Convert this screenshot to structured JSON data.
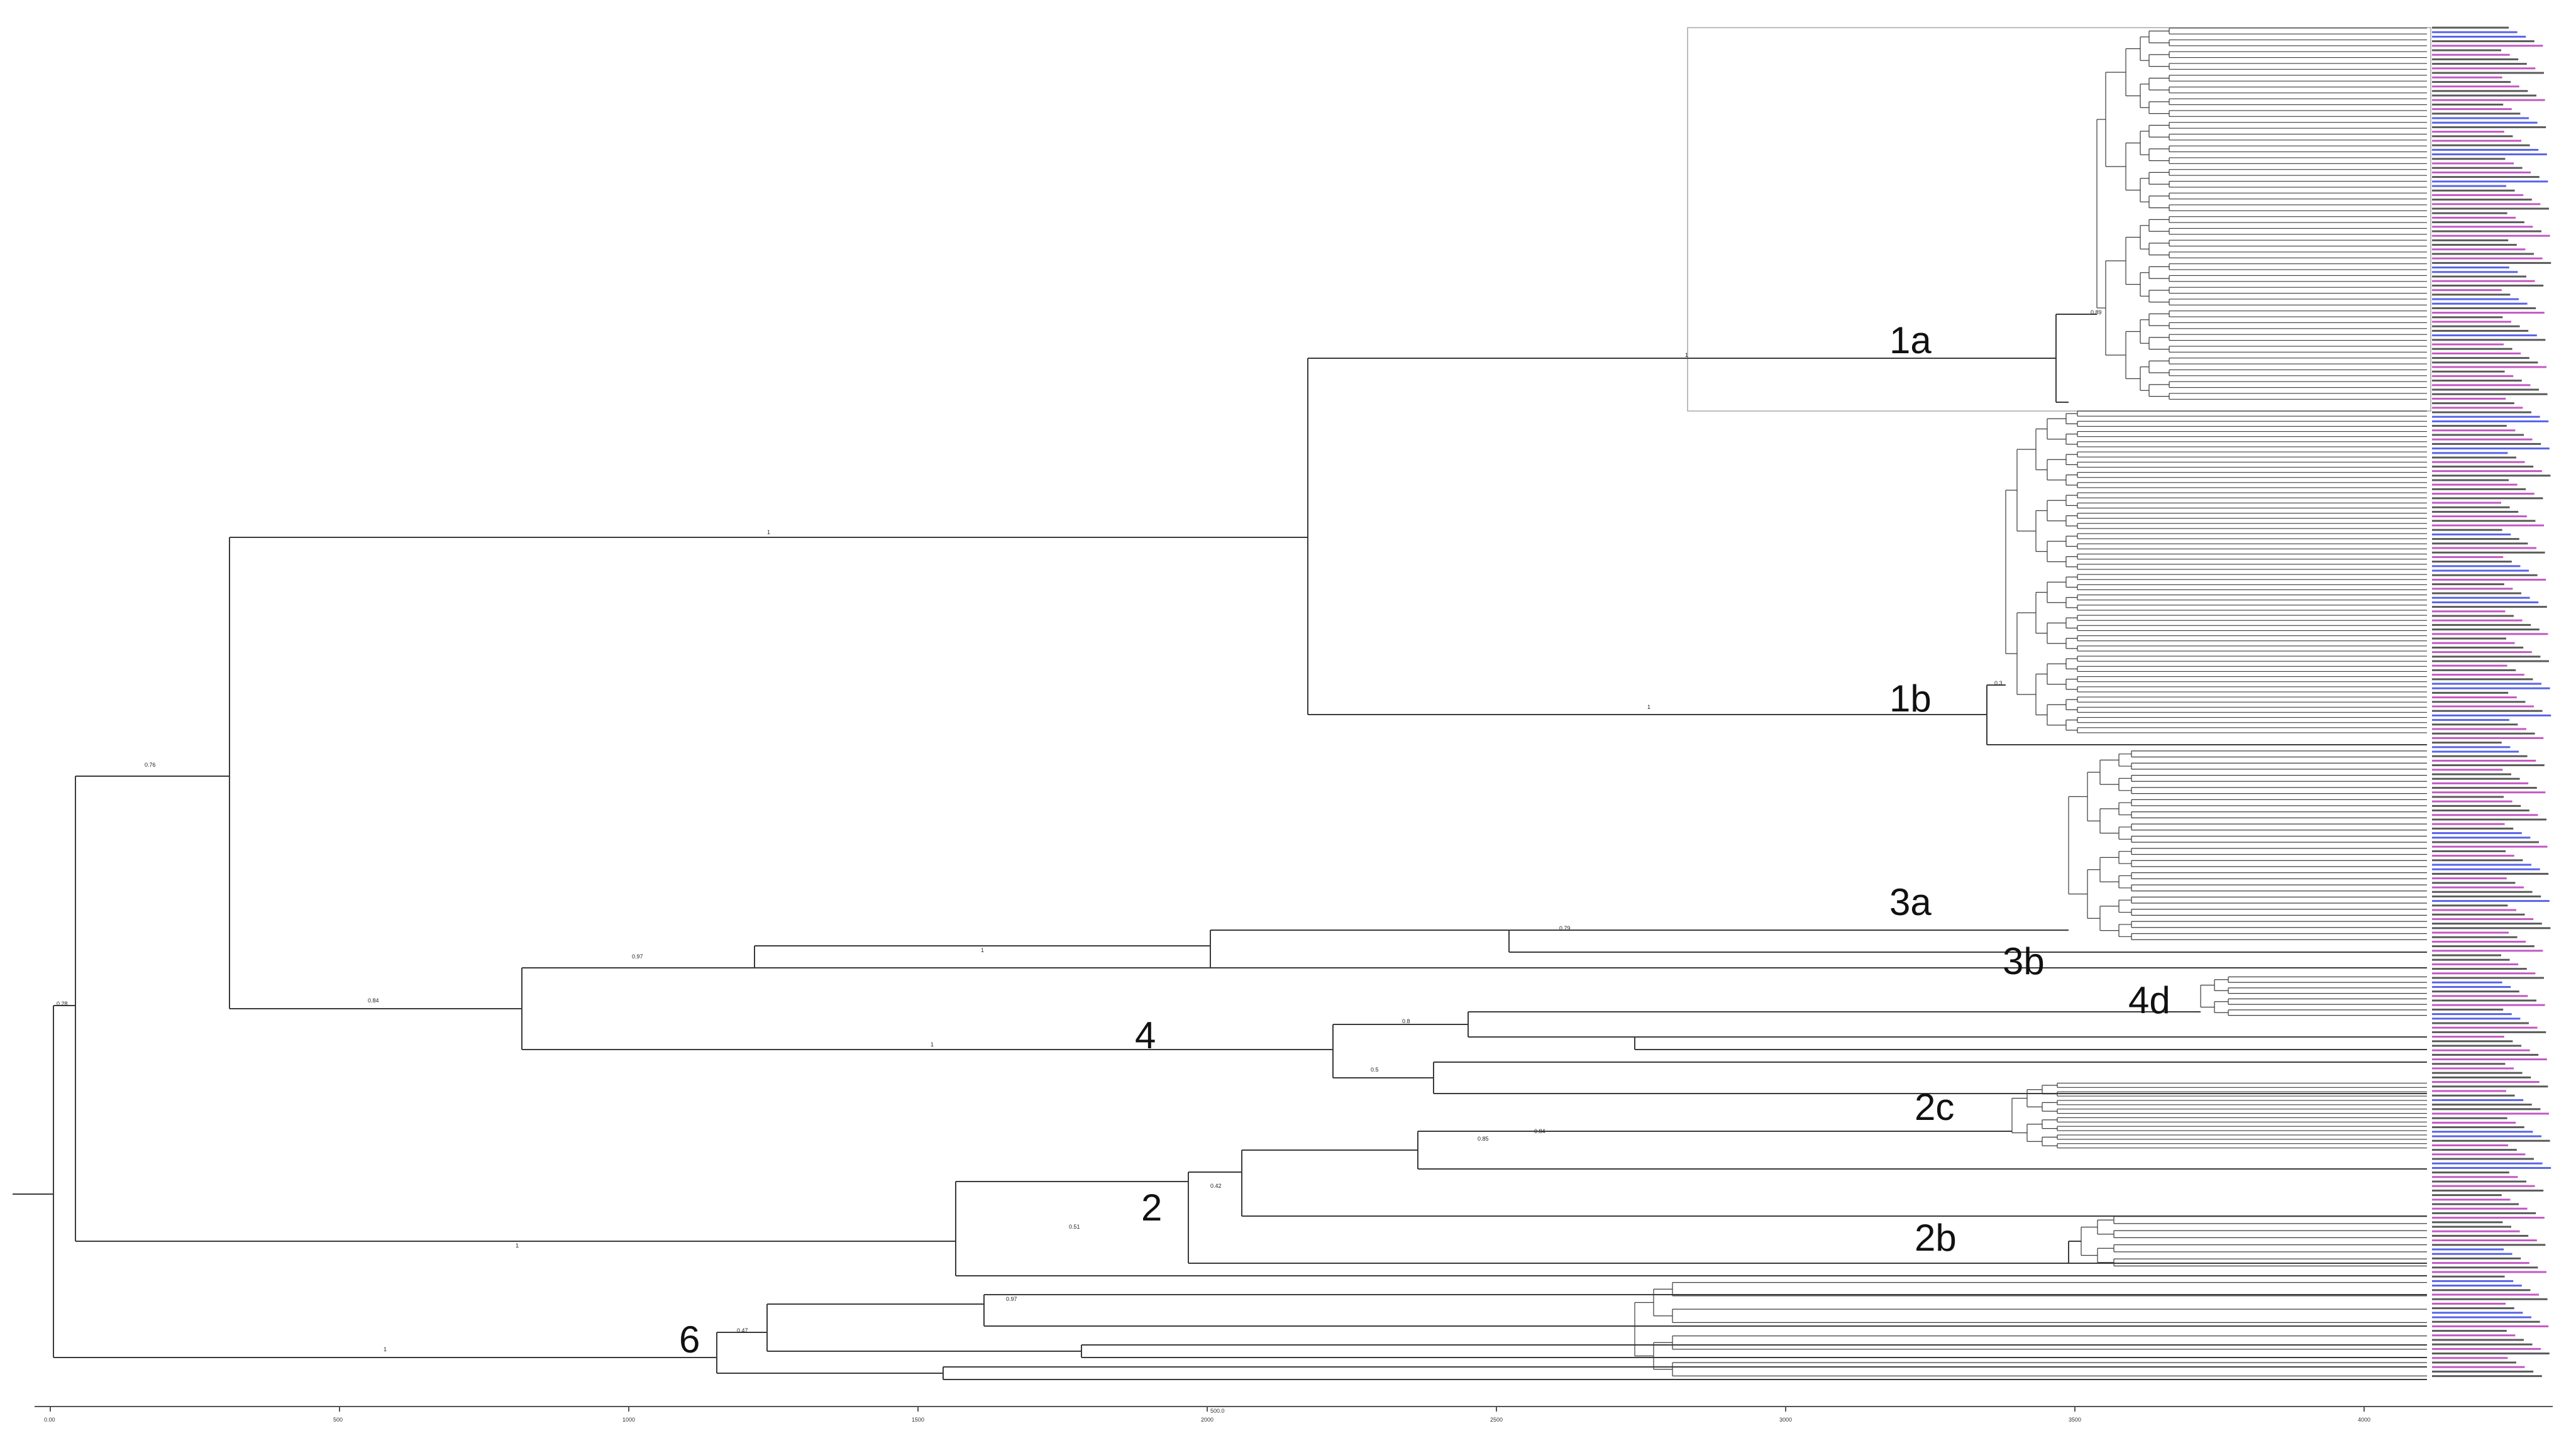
{
  "colors": {
    "branch": "#3a3a3a",
    "frame": "#bdbdbd",
    "tip_black": "#222222",
    "tip_blue": "#1f2fe0",
    "tip_magenta": "#b01fb0"
  },
  "clades": {
    "c1a": "1a",
    "c1b": "1b",
    "c3a": "3a",
    "c3b": "3b",
    "c4d": "4d",
    "c4": "4",
    "c2c": "2c",
    "c2": "2",
    "c2b": "2b",
    "c6": "6"
  },
  "support": {
    "root": "0.28",
    "n_hi": "0.76",
    "n_1": "1",
    "n_1a": "1",
    "n_1a_base": "0.89",
    "n_1b": "1",
    "n_1b_base": "0.3",
    "n_34": "0.84",
    "n_3": "0.97",
    "n_3a": "1",
    "n_3a_b": "0.79",
    "n_4": "1",
    "n_4a": "0.8",
    "n_4b": "0.5",
    "n_2": "1",
    "n_2a": "0.51",
    "n_2b": "0.42",
    "n_2c": "0.85",
    "n_2d": "0.84",
    "n_6": "1",
    "n_6a": "0.47",
    "n_6b": "0.97"
  },
  "axis": {
    "ticks": [
      "0.00",
      "500",
      "1000",
      "1500",
      "2000",
      "2500",
      "3000",
      "3500",
      "4000"
    ],
    "label": "500.0"
  }
}
